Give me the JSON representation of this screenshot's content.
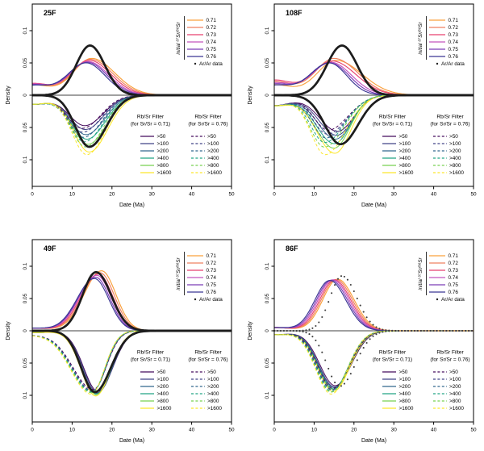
{
  "figure": {
    "background": "#ffffff"
  },
  "axes": {
    "xlabel": "Date (Ma)",
    "ylabel": "Density",
    "x_ticks": [
      0,
      10,
      20,
      30,
      40,
      50
    ],
    "y_ticks": [
      0.1,
      0.05,
      0,
      -0.05,
      -0.1
    ],
    "y_tick_labels": [
      "0.1",
      "0.05",
      "0",
      "0.05",
      "0.1"
    ],
    "xlim": [
      0,
      50
    ],
    "ylim": [
      -0.135,
      0.135
    ],
    "grid": "off"
  },
  "palette": {
    "sr_colors": [
      "#F9A13C",
      "#EF8060",
      "#E8426F",
      "#C353BE",
      "#7C3EB8",
      "#3B3693"
    ],
    "filter_colors": [
      "#450A5C",
      "#414487",
      "#31688E",
      "#21A585",
      "#78D152",
      "#FCE72A"
    ],
    "arar_line_color": "#1C1C1C",
    "arar_dot_color": "#3F3F3F"
  },
  "legend_sr": {
    "title": "initial ⁸⁷Sr/⁸⁶Sr",
    "entries": [
      {
        "label": "0.71"
      },
      {
        "label": "0.72"
      },
      {
        "label": "0.73"
      },
      {
        "label": "0.74"
      },
      {
        "label": "0.75"
      },
      {
        "label": "0.76"
      }
    ],
    "arar_label": "Ar/Ar data"
  },
  "legend_filters": {
    "col1_title": "Rb/Sr Filter",
    "col1_sub": "(for Sr/Sr = 0.71)",
    "col2_title": "Rb/Sr Filter",
    "col2_sub": "(for Sr/Sr = 0.76)",
    "labels": [
      ">50",
      ">100",
      ">200",
      ">400",
      ">800",
      ">1600"
    ]
  },
  "chart_data": [
    {
      "type": "line",
      "title": "25F",
      "xlabel": "Date (Ma)",
      "ylabel": "Density",
      "arar": {
        "style": "line",
        "upper": {
          "mu": 14.5,
          "h": 0.077,
          "sl": 3.5,
          "sr": 3.7
        },
        "lower": {
          "mu": 14.3,
          "h": 0.08,
          "sl": 3.5,
          "sr": 4.3
        }
      },
      "sr_series": [
        {
          "name": "0.71",
          "mu": 14.9,
          "h": 0.057,
          "sl": 4.6,
          "sr": 5.8,
          "y0": 0.016
        },
        {
          "name": "0.72",
          "mu": 14.6,
          "h": 0.0555,
          "sl": 4.6,
          "sr": 5.6,
          "y0": 0.017
        },
        {
          "name": "0.73",
          "mu": 14.3,
          "h": 0.054,
          "sl": 4.6,
          "sr": 5.4,
          "y0": 0.018
        },
        {
          "name": "0.74",
          "mu": 14.0,
          "h": 0.052,
          "sl": 4.6,
          "sr": 5.2,
          "y0": 0.017
        },
        {
          "name": "0.75",
          "mu": 13.8,
          "h": 0.051,
          "sl": 4.6,
          "sr": 5.0,
          "y0": 0.016
        },
        {
          "name": "0.76",
          "mu": 13.5,
          "h": 0.05,
          "sl": 4.6,
          "sr": 4.8,
          "y0": 0.015
        }
      ],
      "filter_solid": [
        {
          "name": ">50",
          "mu": 13.2,
          "h": 0.047,
          "sl": 4.0,
          "sr": 4.6,
          "y0": 0.014
        },
        {
          "name": ">100",
          "mu": 13.3,
          "h": 0.053,
          "sl": 4.0,
          "sr": 4.6,
          "y0": 0.014
        },
        {
          "name": ">200",
          "mu": 13.5,
          "h": 0.061,
          "sl": 4.0,
          "sr": 4.6,
          "y0": 0.014
        },
        {
          "name": ">400",
          "mu": 13.7,
          "h": 0.068,
          "sl": 4.0,
          "sr": 4.6,
          "y0": 0.014
        },
        {
          "name": ">800",
          "mu": 14.0,
          "h": 0.076,
          "sl": 4.0,
          "sr": 4.6,
          "y0": 0.014
        },
        {
          "name": ">1600",
          "mu": 14.3,
          "h": 0.088,
          "sl": 4.0,
          "sr": 4.6,
          "y0": 0.014
        }
      ],
      "filter_dashed": [
        {
          "name": ">50",
          "mu": 12.6,
          "h": 0.051,
          "sl": 3.8,
          "sr": 4.6,
          "y0": 0.014
        },
        {
          "name": ">100",
          "mu": 12.7,
          "h": 0.057,
          "sl": 3.8,
          "sr": 4.6,
          "y0": 0.014
        },
        {
          "name": ">200",
          "mu": 12.9,
          "h": 0.065,
          "sl": 3.8,
          "sr": 4.6,
          "y0": 0.014
        },
        {
          "name": ">400",
          "mu": 13.1,
          "h": 0.072,
          "sl": 3.8,
          "sr": 4.6,
          "y0": 0.014
        },
        {
          "name": ">800",
          "mu": 13.4,
          "h": 0.08,
          "sl": 3.8,
          "sr": 4.6,
          "y0": 0.014
        },
        {
          "name": ">1600",
          "mu": 13.7,
          "h": 0.092,
          "sl": 3.8,
          "sr": 4.6,
          "y0": 0.014
        }
      ]
    },
    {
      "type": "line",
      "title": "108F",
      "xlabel": "Date (Ma)",
      "ylabel": "Density",
      "arar": {
        "style": "line",
        "upper": {
          "mu": 17.0,
          "h": 0.077,
          "sl": 3.8,
          "sr": 3.8
        },
        "lower": {
          "mu": 16.6,
          "h": 0.076,
          "sl": 3.9,
          "sr": 4.4
        }
      },
      "sr_series": [
        {
          "name": "0.71",
          "mu": 15.5,
          "h": 0.054,
          "sl": 4.8,
          "sr": 6.5,
          "y0": 0.016
        },
        {
          "name": "0.72",
          "mu": 15.0,
          "h": 0.057,
          "sl": 4.8,
          "sr": 6.0,
          "y0": 0.021
        },
        {
          "name": "0.73",
          "mu": 14.5,
          "h": 0.053,
          "sl": 4.8,
          "sr": 6.0,
          "y0": 0.023
        },
        {
          "name": "0.74",
          "mu": 14.2,
          "h": 0.051,
          "sl": 4.8,
          "sr": 5.2,
          "y0": 0.019
        },
        {
          "name": "0.75",
          "mu": 14.0,
          "h": 0.05,
          "sl": 4.8,
          "sr": 4.8,
          "y0": 0.017
        },
        {
          "name": "0.76",
          "mu": 13.8,
          "h": 0.05,
          "sl": 4.8,
          "sr": 4.4,
          "y0": 0.015
        }
      ],
      "filter_solid": [
        {
          "name": ">50",
          "mu": 15.9,
          "h": 0.056,
          "sl": 4.6,
          "sr": 4.0,
          "y0": 0.016
        },
        {
          "name": ">100",
          "mu": 15.7,
          "h": 0.062,
          "sl": 4.6,
          "sr": 4.0,
          "y0": 0.016
        },
        {
          "name": ">200",
          "mu": 15.4,
          "h": 0.068,
          "sl": 4.6,
          "sr": 4.0,
          "y0": 0.016
        },
        {
          "name": ">400",
          "mu": 15.1,
          "h": 0.075,
          "sl": 4.6,
          "sr": 4.0,
          "y0": 0.016
        },
        {
          "name": ">800",
          "mu": 15.0,
          "h": 0.082,
          "sl": 4.6,
          "sr": 4.0,
          "y0": 0.016
        },
        {
          "name": ">1600",
          "mu": 15.2,
          "h": 0.09,
          "sl": 4.6,
          "sr": 4.0,
          "y0": 0.016
        }
      ],
      "filter_dashed": [
        {
          "name": ">50",
          "mu": 13.5,
          "h": 0.054,
          "sl": 3.6,
          "sr": 5.0,
          "y0": 0.016
        },
        {
          "name": ">100",
          "mu": 13.3,
          "h": 0.06,
          "sl": 3.6,
          "sr": 5.0,
          "y0": 0.016
        },
        {
          "name": ">200",
          "mu": 13.0,
          "h": 0.066,
          "sl": 3.6,
          "sr": 5.0,
          "y0": 0.016
        },
        {
          "name": ">400",
          "mu": 12.7,
          "h": 0.073,
          "sl": 3.6,
          "sr": 5.0,
          "y0": 0.016
        },
        {
          "name": ">800",
          "mu": 12.6,
          "h": 0.08,
          "sl": 3.6,
          "sr": 5.0,
          "y0": 0.016
        },
        {
          "name": ">1600",
          "mu": 12.8,
          "h": 0.092,
          "sl": 3.6,
          "sr": 5.0,
          "y0": 0.016
        }
      ]
    },
    {
      "type": "line",
      "title": "49F",
      "xlabel": "Date (Ma)",
      "ylabel": "Density",
      "arar": {
        "style": "line",
        "upper": {
          "mu": 16.0,
          "h": 0.091,
          "sl": 3.4,
          "sr": 3.8
        },
        "lower": {
          "mu": 15.7,
          "h": 0.095,
          "sl": 3.4,
          "sr": 4.0
        }
      },
      "sr_series": [
        {
          "name": "0.71",
          "mu": 17.4,
          "h": 0.093,
          "sl": 4.4,
          "sr": 3.6,
          "y0": 0.004
        },
        {
          "name": "0.72",
          "mu": 17.0,
          "h": 0.09,
          "sl": 4.4,
          "sr": 3.6,
          "y0": 0.004
        },
        {
          "name": "0.73",
          "mu": 16.6,
          "h": 0.088,
          "sl": 4.4,
          "sr": 3.6,
          "y0": 0.004
        },
        {
          "name": "0.74",
          "mu": 16.2,
          "h": 0.086,
          "sl": 4.4,
          "sr": 3.6,
          "y0": 0.004
        },
        {
          "name": "0.75",
          "mu": 15.9,
          "h": 0.083,
          "sl": 4.4,
          "sr": 3.6,
          "y0": 0.004
        },
        {
          "name": "0.76",
          "mu": 15.6,
          "h": 0.081,
          "sl": 4.4,
          "sr": 3.6,
          "y0": 0.004
        }
      ],
      "filter_solid": [
        {
          "name": ">50",
          "mu": 16.5,
          "h": 0.094,
          "sl": 3.6,
          "sr": 3.7,
          "y0": 0.003
        },
        {
          "name": ">100",
          "mu": 16.4,
          "h": 0.096,
          "sl": 3.6,
          "sr": 3.7,
          "y0": 0.003
        },
        {
          "name": ">200",
          "mu": 16.2,
          "h": 0.097,
          "sl": 3.6,
          "sr": 3.7,
          "y0": 0.003
        },
        {
          "name": ">400",
          "mu": 16.1,
          "h": 0.098,
          "sl": 3.6,
          "sr": 3.7,
          "y0": 0.003
        },
        {
          "name": ">800",
          "mu": 16.0,
          "h": 0.099,
          "sl": 3.6,
          "sr": 3.7,
          "y0": 0.003
        },
        {
          "name": ">1600",
          "mu": 15.9,
          "h": 0.101,
          "sl": 3.6,
          "sr": 3.7,
          "y0": 0.003
        }
      ],
      "filter_dashed": [
        {
          "name": ">50",
          "mu": 15.3,
          "h": 0.091,
          "sl": 5.2,
          "sr": 3.3,
          "y0": 0.006
        },
        {
          "name": ">100",
          "mu": 15.2,
          "h": 0.093,
          "sl": 5.2,
          "sr": 3.3,
          "y0": 0.006
        },
        {
          "name": ">200",
          "mu": 15.1,
          "h": 0.094,
          "sl": 5.2,
          "sr": 3.3,
          "y0": 0.006
        },
        {
          "name": ">400",
          "mu": 15.0,
          "h": 0.095,
          "sl": 5.2,
          "sr": 3.3,
          "y0": 0.006
        },
        {
          "name": ">800",
          "mu": 14.9,
          "h": 0.096,
          "sl": 5.2,
          "sr": 3.3,
          "y0": 0.006
        },
        {
          "name": ">1600",
          "mu": 14.8,
          "h": 0.098,
          "sl": 5.2,
          "sr": 3.3,
          "y0": 0.006
        }
      ]
    },
    {
      "type": "line",
      "title": "86F",
      "xlabel": "Date (Ma)",
      "ylabel": "Density",
      "arar": {
        "style": "dots",
        "upper": {
          "mu": 17.0,
          "h": 0.085,
          "sl": 3.0,
          "sr": 3.7
        },
        "lower": {
          "mu": 16.4,
          "h": 0.086,
          "sl": 3.2,
          "sr": 3.9
        }
      },
      "sr_series": [
        {
          "name": "0.71",
          "mu": 15.9,
          "h": 0.08,
          "sl": 3.7,
          "sr": 4.1,
          "y0": 0.005
        },
        {
          "name": "0.72",
          "mu": 15.5,
          "h": 0.0795,
          "sl": 3.7,
          "sr": 4.1,
          "y0": 0.005
        },
        {
          "name": "0.73",
          "mu": 15.1,
          "h": 0.079,
          "sl": 3.7,
          "sr": 4.1,
          "y0": 0.005
        },
        {
          "name": "0.74",
          "mu": 14.7,
          "h": 0.079,
          "sl": 3.7,
          "sr": 4.1,
          "y0": 0.005
        },
        {
          "name": "0.75",
          "mu": 14.3,
          "h": 0.0785,
          "sl": 3.7,
          "sr": 4.1,
          "y0": 0.005
        },
        {
          "name": "0.76",
          "mu": 13.9,
          "h": 0.078,
          "sl": 3.7,
          "sr": 4.1,
          "y0": 0.005
        }
      ],
      "filter_solid": [
        {
          "name": ">50",
          "mu": 15.3,
          "h": 0.085,
          "sl": 3.9,
          "sr": 4.1,
          "y0": 0.006
        },
        {
          "name": ">100",
          "mu": 15.1,
          "h": 0.087,
          "sl": 3.9,
          "sr": 4.1,
          "y0": 0.006
        },
        {
          "name": ">200",
          "mu": 15.0,
          "h": 0.088,
          "sl": 3.9,
          "sr": 4.1,
          "y0": 0.006
        },
        {
          "name": ">400",
          "mu": 14.9,
          "h": 0.09,
          "sl": 3.9,
          "sr": 4.1,
          "y0": 0.006
        },
        {
          "name": ">800",
          "mu": 14.8,
          "h": 0.091,
          "sl": 3.9,
          "sr": 4.1,
          "y0": 0.006
        },
        {
          "name": ">1600",
          "mu": 14.8,
          "h": 0.094,
          "sl": 3.9,
          "sr": 4.1,
          "y0": 0.006
        }
      ],
      "filter_dashed": [
        {
          "name": ">50",
          "mu": 14.8,
          "h": 0.089,
          "sl": 3.9,
          "sr": 4.1,
          "y0": 0.006
        },
        {
          "name": ">100",
          "mu": 14.6,
          "h": 0.091,
          "sl": 3.9,
          "sr": 4.1,
          "y0": 0.006
        },
        {
          "name": ">200",
          "mu": 14.5,
          "h": 0.092,
          "sl": 3.9,
          "sr": 4.1,
          "y0": 0.006
        },
        {
          "name": ">400",
          "mu": 14.4,
          "h": 0.094,
          "sl": 3.9,
          "sr": 4.1,
          "y0": 0.006
        },
        {
          "name": ">800",
          "mu": 14.3,
          "h": 0.095,
          "sl": 3.9,
          "sr": 4.1,
          "y0": 0.006
        },
        {
          "name": ">1600",
          "mu": 14.3,
          "h": 0.098,
          "sl": 3.9,
          "sr": 4.1,
          "y0": 0.006
        }
      ]
    }
  ]
}
